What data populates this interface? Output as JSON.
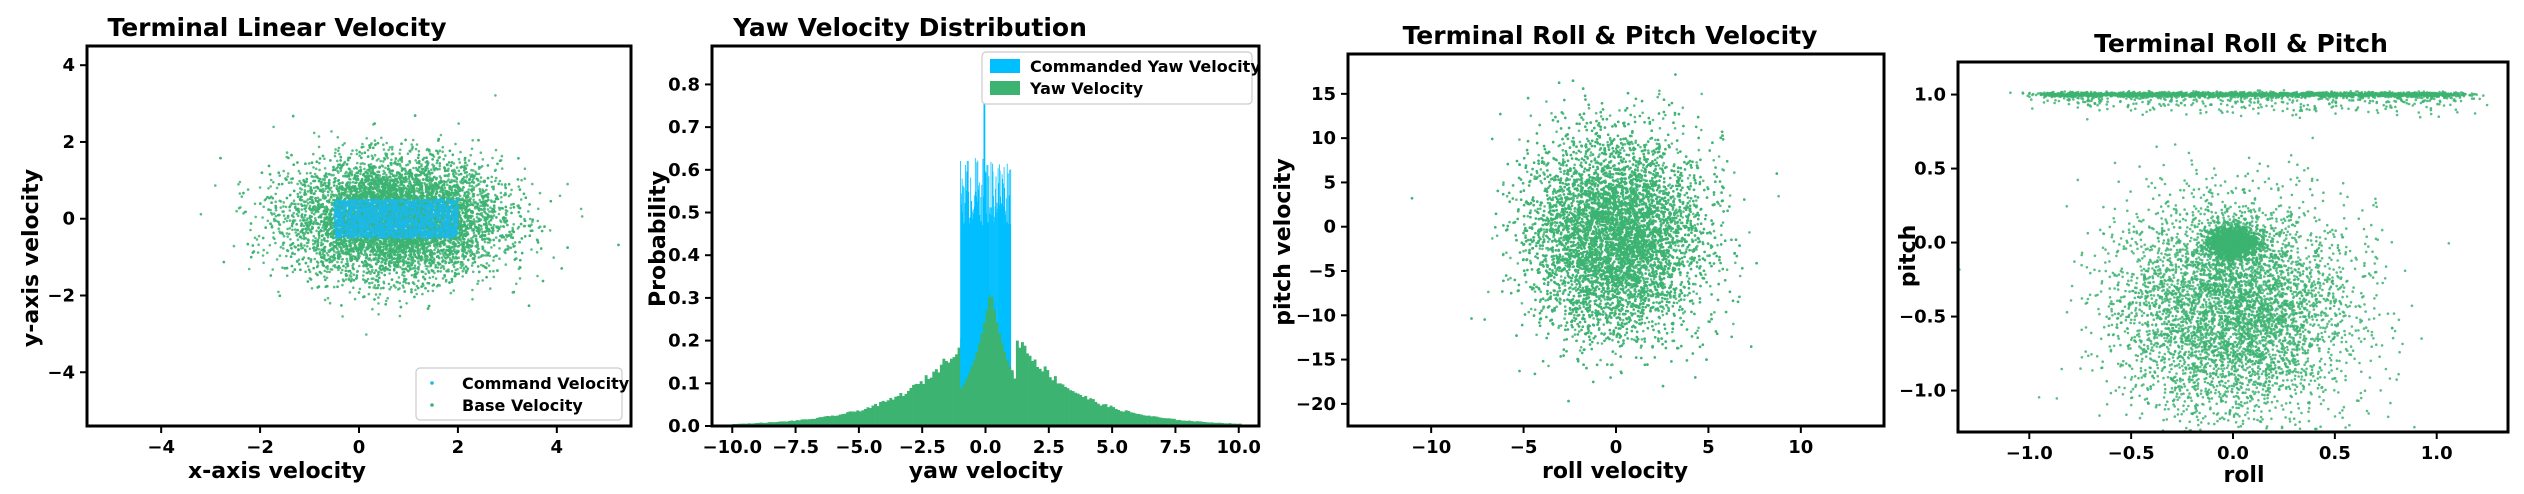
{
  "colors": {
    "green": "#3cb371",
    "cyan": "#1cb8e8",
    "cyan_bar": "#00bfff",
    "axis": "#000000"
  },
  "chart_data": [
    {
      "type": "scatter",
      "title": "Terminal Linear Velocity",
      "xlabel": "x-axis velocity",
      "ylabel": "y-axis velocity",
      "xlim": [
        -5.5,
        5.5
      ],
      "ylim": [
        -5.4,
        4.5
      ],
      "xticks": [
        -4,
        -2,
        0,
        2,
        4
      ],
      "yticks": [
        -4,
        -2,
        0,
        2,
        4
      ],
      "grid": false,
      "legend": "lower-right",
      "series": [
        {
          "name": "Command Velocity",
          "color": "#1cb8e8",
          "distribution": "uniform",
          "x_range": [
            -0.5,
            2.0
          ],
          "y_range": [
            -0.5,
            0.5
          ],
          "count": 1800
        },
        {
          "name": "Base Velocity",
          "color": "#3cb371",
          "distribution": "gaussian",
          "x_center": 0.75,
          "x_std": 1.05,
          "y_center": 0.0,
          "y_std": 0.75,
          "count": 9000
        }
      ]
    },
    {
      "type": "bar",
      "title": "Yaw Velocity Distribution",
      "xlabel": "yaw velocity",
      "ylabel": "Probability",
      "xlim": [
        -10.8,
        10.8
      ],
      "ylim": [
        0,
        0.89
      ],
      "xticks": [
        -10.0,
        -7.5,
        -5.0,
        -2.5,
        0.0,
        2.5,
        5.0,
        7.5,
        10.0
      ],
      "yticks": [
        0.0,
        0.1,
        0.2,
        0.3,
        0.4,
        0.5,
        0.6,
        0.7,
        0.8
      ],
      "grid": false,
      "legend": "top-right",
      "series": [
        {
          "name": "Commanded Yaw Velocity",
          "color": "#00bfff",
          "distribution": "uniform",
          "x_range": [
            -1.0,
            1.0
          ],
          "level": 0.55,
          "peak": 0.78
        },
        {
          "name": "Yaw Velocity",
          "color": "#3cb371",
          "distribution": "laplace",
          "center": 0.2,
          "peak": 0.32,
          "scale": 2.4,
          "x_range": [
            -10,
            10
          ]
        }
      ]
    },
    {
      "type": "scatter",
      "title": "Terminal Roll & Pitch Velocity",
      "xlabel": "roll velocity",
      "ylabel": "pitch velocity",
      "xlim": [
        -14.5,
        14.5
      ],
      "ylim": [
        -22.5,
        19.5
      ],
      "xticks": [
        -10,
        -5,
        0,
        5,
        10
      ],
      "yticks": [
        -20,
        -15,
        -10,
        -5,
        0,
        5,
        10,
        15
      ],
      "grid": false,
      "series": [
        {
          "color": "#3cb371",
          "distribution": "gaussian",
          "x_center": 0.0,
          "x_std": 2.3,
          "y_center": -1.0,
          "y_std": 5.5,
          "count": 9000
        }
      ]
    },
    {
      "type": "scatter",
      "title": "Terminal Roll & Pitch",
      "xlabel": "roll",
      "ylabel": "pitch",
      "xlim": [
        -1.35,
        1.35
      ],
      "ylim": [
        -1.28,
        1.22
      ],
      "xticks": [
        -1.0,
        -0.5,
        0.0,
        0.5,
        1.0
      ],
      "yticks": [
        -1.0,
        -0.5,
        0.0,
        0.5,
        1.0
      ],
      "grid": false,
      "series": [
        {
          "color": "#3cb371",
          "distribution": "band",
          "y_value": 1.0,
          "x_range": [
            -0.9,
            1.1
          ],
          "count": 2500
        },
        {
          "color": "#3cb371",
          "distribution": "cluster",
          "x_center": 0.0,
          "y_center": 0.0,
          "std": 0.06,
          "count": 1800
        },
        {
          "color": "#3cb371",
          "distribution": "gaussian",
          "x_center": 0.0,
          "x_std": 0.28,
          "y_center": -0.45,
          "y_std": 0.35,
          "count": 5000
        }
      ]
    }
  ]
}
